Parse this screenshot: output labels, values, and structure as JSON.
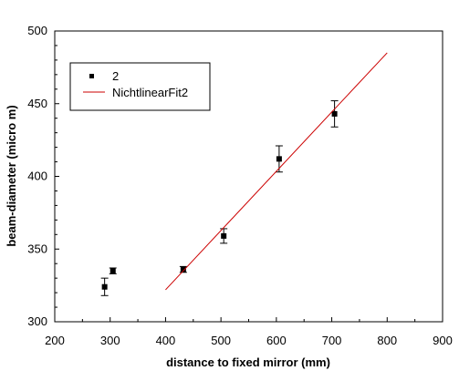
{
  "chart_data": {
    "type": "scatter",
    "xlabel": "distance to fixed mirror (mm)",
    "ylabel": "beam-diameter (micro m)",
    "xlim": [
      200,
      900
    ],
    "ylim": [
      300,
      500
    ],
    "xticks": [
      "200",
      "300",
      "400",
      "500",
      "600",
      "700",
      "800",
      "900"
    ],
    "yticks": [
      "300",
      "350",
      "400",
      "450",
      "500"
    ],
    "legend_position": "top-left",
    "series": [
      {
        "name": "2",
        "kind": "points_with_error_bars",
        "color": "#000000",
        "x": [
          290,
          305,
          432,
          505,
          605,
          705
        ],
        "y": [
          324,
          335,
          336,
          359,
          412,
          443
        ],
        "yerr": [
          6,
          2,
          2,
          5,
          9,
          9
        ]
      },
      {
        "name": "NichtlinearFit2",
        "kind": "line",
        "color": "#cc0000",
        "x": [
          400,
          800
        ],
        "y": [
          322,
          485
        ]
      }
    ]
  }
}
